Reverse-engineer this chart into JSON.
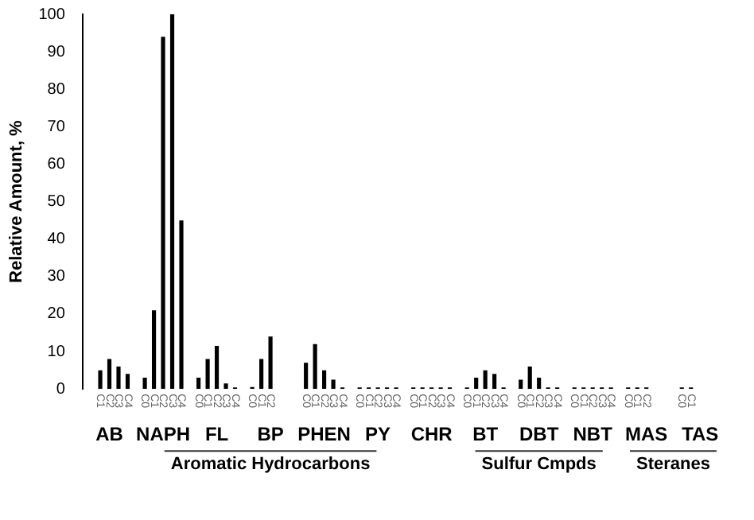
{
  "chart_data": {
    "type": "bar",
    "ylabel": "Relative Amount, %",
    "categories": [
      "AB",
      "NAPH",
      "FL",
      "BP",
      "PHEN",
      "PY",
      "CHR",
      "BT",
      "DBT",
      "NBT",
      "MAS",
      "TAS"
    ],
    "series": [
      {
        "name": "C0",
        "color": "#000000",
        "values": [
          null,
          3,
          3,
          0.5,
          7,
          0,
          0,
          0,
          2.5,
          0,
          0,
          0
        ]
      },
      {
        "name": "C1",
        "color": "#000000",
        "values": [
          5,
          21,
          8,
          8,
          12,
          0,
          0,
          3,
          6,
          0,
          0,
          0
        ]
      },
      {
        "name": "C2",
        "color": "#000000",
        "values": [
          8,
          94,
          11.5,
          14,
          5,
          0,
          0,
          5,
          3,
          0,
          0,
          null
        ]
      },
      {
        "name": "C3",
        "color": "#000000",
        "values": [
          6,
          100,
          1.5,
          null,
          2.5,
          0,
          0,
          4,
          0,
          0,
          null,
          null
        ]
      },
      {
        "name": "C4",
        "color": "#000000",
        "values": [
          4,
          45,
          0,
          null,
          0,
          0,
          0,
          0,
          0,
          0,
          null,
          null
        ]
      }
    ],
    "ylim": [
      0,
      100
    ],
    "yticks": [
      0,
      10,
      20,
      30,
      40,
      50,
      60,
      70,
      80,
      90,
      100
    ],
    "grid": false,
    "legend": false,
    "annotations": [
      "Aromatic Hydrocarbons",
      "Sulfur Cmpds",
      "Steranes"
    ]
  }
}
